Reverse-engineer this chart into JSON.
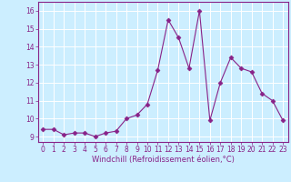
{
  "x": [
    0,
    1,
    2,
    3,
    4,
    5,
    6,
    7,
    8,
    9,
    10,
    11,
    12,
    13,
    14,
    15,
    16,
    17,
    18,
    19,
    20,
    21,
    22,
    23
  ],
  "y": [
    9.4,
    9.4,
    9.1,
    9.2,
    9.2,
    9.0,
    9.2,
    9.3,
    10.0,
    10.2,
    10.8,
    12.7,
    15.5,
    14.5,
    12.8,
    16.0,
    9.9,
    12.0,
    13.4,
    12.8,
    12.6,
    11.4,
    11.0,
    9.9
  ],
  "line_color": "#882288",
  "marker": "D",
  "marker_size": 2.5,
  "xlabel": "Windchill (Refroidissement éolien,°C)",
  "xlim": [
    -0.5,
    23.5
  ],
  "ylim": [
    8.7,
    16.5
  ],
  "yticks": [
    9,
    10,
    11,
    12,
    13,
    14,
    15,
    16
  ],
  "xticks": [
    0,
    1,
    2,
    3,
    4,
    5,
    6,
    7,
    8,
    9,
    10,
    11,
    12,
    13,
    14,
    15,
    16,
    17,
    18,
    19,
    20,
    21,
    22,
    23
  ],
  "background_color": "#cceeff",
  "grid_color": "#ffffff",
  "label_color": "#882288",
  "tick_label_color": "#882288",
  "font_size": 5.5,
  "xlabel_font_size": 6.0
}
